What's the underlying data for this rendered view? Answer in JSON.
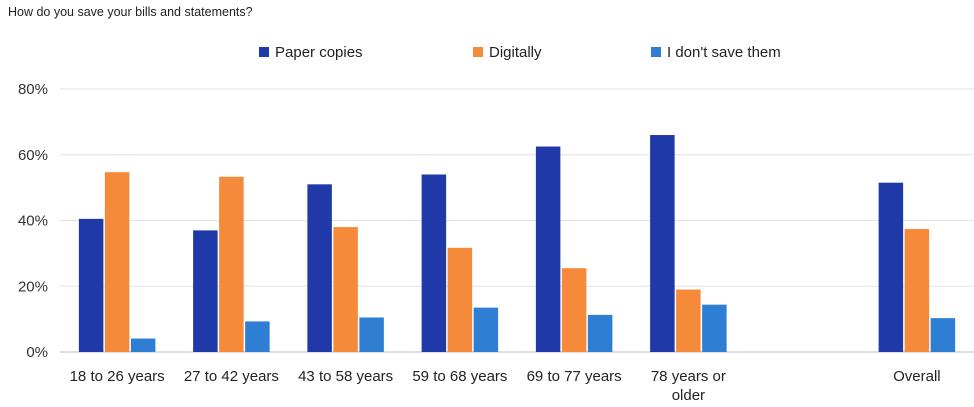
{
  "chart_data": {
    "type": "bar",
    "title": "How do you save your bills and statements?",
    "categories": [
      [
        "18 to 26 years"
      ],
      [
        "27 to 42 years"
      ],
      [
        "43 to 58 years"
      ],
      [
        "59 to 68 years"
      ],
      [
        "69 to 77 years"
      ],
      [
        "78 years or",
        "older"
      ],
      [],
      [
        "Overall"
      ]
    ],
    "series": [
      {
        "name": "Paper copies",
        "color": "#1f3aa8",
        "values": [
          40.5,
          37,
          51,
          54,
          62.5,
          66,
          null,
          51.5
        ]
      },
      {
        "name": "Digitally",
        "color": "#f58b3a",
        "values": [
          54.7,
          53.3,
          38,
          31.7,
          25.5,
          19,
          null,
          37.4
        ]
      },
      {
        "name": "I don't save them",
        "color": "#2e7fd3",
        "values": [
          4.1,
          9.3,
          10.5,
          13.5,
          11.3,
          14.4,
          null,
          10.3
        ]
      }
    ],
    "y_ticks": [
      "0%",
      "20%",
      "40%",
      "60%",
      "80%"
    ],
    "ylim": [
      0,
      80
    ],
    "xlabel": "",
    "ylabel": "",
    "grid": true,
    "legend_position": "top"
  }
}
